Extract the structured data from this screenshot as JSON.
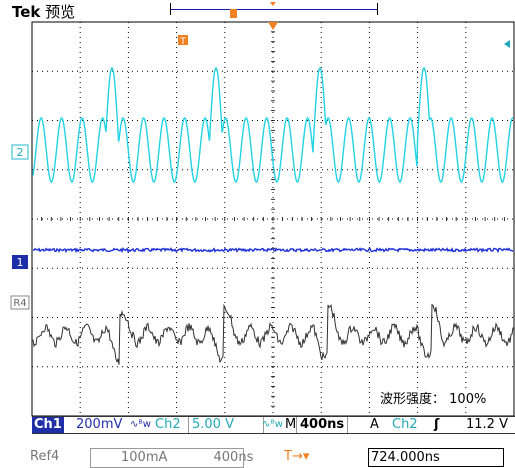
{
  "header": {
    "brand": "Tek",
    "mode": "预览"
  },
  "channels": {
    "ch2_marker": "2",
    "ch1_marker": "1",
    "ref4_marker": "R4",
    "trigger_marker": "T"
  },
  "overlay": {
    "intensity_label": "波形强度：",
    "intensity_value": "100%"
  },
  "status_bar": {
    "ch1_label": "Ch1",
    "ch1_scale": "200mV",
    "ch1_bw": "∿ᴮw",
    "ch2_label": "Ch2",
    "ch2_scale": "5.00 V",
    "ch2_bw": "∿ᴮw",
    "timebase_mode": "M",
    "timebase": "400ns",
    "trigger_mode": "A",
    "trigger_source": "Ch2",
    "trigger_slope": "ʃ",
    "trigger_level": "11.2 V"
  },
  "ref_bar": {
    "ref_label": "Ref4",
    "ref_scale": "100mA",
    "ref_time": "400ns",
    "trigger_pos_icon": "T→▾",
    "trigger_pos_value": "724.000ns"
  },
  "colors": {
    "ch2": "#22d3e6",
    "ch1": "#1c2fd8",
    "ref4": "#303030",
    "grid": "#000000",
    "trigger": "#f08020"
  }
}
